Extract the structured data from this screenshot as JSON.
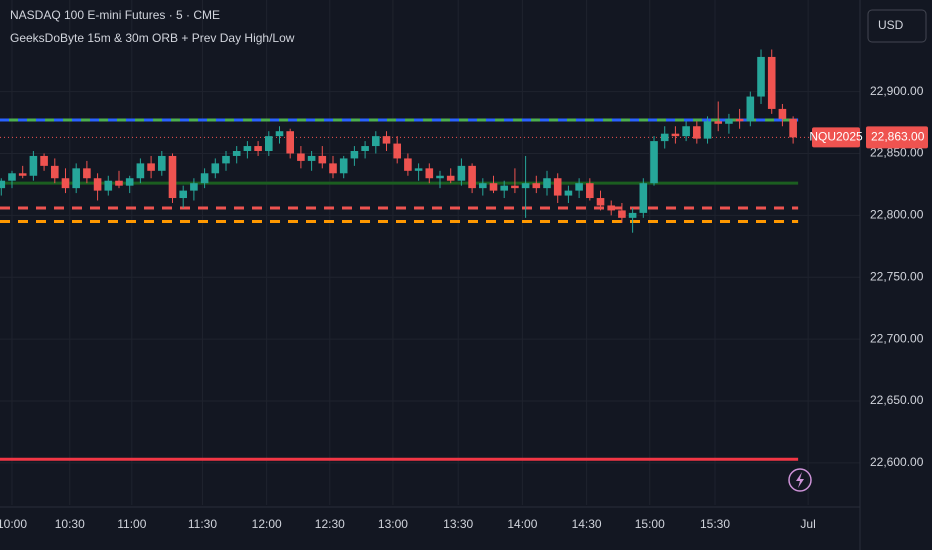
{
  "chart_data": {
    "type": "candlestick",
    "title": "NASDAQ 100 E-mini Futures · 5 · CME",
    "subtitle": "GeeksDoByte 15m & 30m ORB + Prev Day High/Low",
    "currency": "USD",
    "symbol": "NQU2025",
    "last_price": {
      "value": 22863,
      "label": "22,863.00"
    },
    "up_color": "#26a69a",
    "down_color": "#ef5350",
    "grid": true,
    "xlim": [
      -0.12,
      80.25
    ],
    "ylim": [
      22566,
      22974
    ],
    "xticks": [
      {
        "value": 1,
        "label": "10:00"
      },
      {
        "value": 6.4,
        "label": "10:30"
      },
      {
        "value": 12.2,
        "label": "11:00"
      },
      {
        "value": 18.8,
        "label": "11:30"
      },
      {
        "value": 24.8,
        "label": "12:00"
      },
      {
        "value": 30.7,
        "label": "12:30"
      },
      {
        "value": 36.6,
        "label": "13:00"
      },
      {
        "value": 42.7,
        "label": "13:30"
      },
      {
        "value": 48.7,
        "label": "14:00"
      },
      {
        "value": 54.7,
        "label": "14:30"
      },
      {
        "value": 60.6,
        "label": "15:00"
      },
      {
        "value": 66.7,
        "label": "15:30"
      },
      {
        "value": 75.4,
        "label": "Jul"
      }
    ],
    "yticks": [
      {
        "value": 22600,
        "label": "22,600.00"
      },
      {
        "value": 22650,
        "label": "22,650.00"
      },
      {
        "value": 22700,
        "label": "22,700.00"
      },
      {
        "value": 22750,
        "label": "22,750.00"
      },
      {
        "value": 22800,
        "label": "22,800.00"
      },
      {
        "value": 22850,
        "label": "22,850.00"
      },
      {
        "value": 22900,
        "label": "22,900.00"
      }
    ],
    "levels": [
      {
        "value": 22877,
        "color": "#2962ff",
        "color2": "#4caf50",
        "style": "dashed"
      },
      {
        "value": 22826,
        "color": "#1b5e20",
        "style": "solid"
      },
      {
        "value": 22806,
        "color": "#ef5350",
        "style": "dashed"
      },
      {
        "value": 22795,
        "color": "#ff9800",
        "style": "dashed"
      },
      {
        "value": 22603,
        "color": "#f23645",
        "style": "solid"
      }
    ],
    "open": [
      22822,
      22828,
      22834,
      22832,
      22848,
      22840,
      22830,
      22822,
      22838,
      22830,
      22820,
      22828,
      22824,
      22830,
      22842,
      22836,
      22848,
      22814,
      22820,
      22826,
      22834,
      22842,
      22848,
      22852,
      22856,
      22852,
      22864,
      22868,
      22850,
      22844,
      22848,
      22842,
      22834,
      22846,
      22852,
      22856,
      22864,
      22858,
      22846,
      22836,
      22838,
      22830,
      22832,
      22828,
      22840,
      22822,
      22826,
      22820,
      22824,
      22822,
      22826,
      22822,
      22830,
      22816,
      22820,
      22826,
      22814,
      22808,
      22804,
      22798,
      22802,
      22826,
      22860,
      22866,
      22864,
      22872,
      22862,
      22876,
      22874,
      22878,
      22876,
      22896,
      22928,
      22886,
      22878
    ],
    "high": [
      22830,
      22836,
      22840,
      22852,
      22850,
      22846,
      22838,
      22842,
      22844,
      22834,
      22832,
      22836,
      22832,
      22846,
      22848,
      22852,
      22850,
      22824,
      22830,
      22838,
      22846,
      22852,
      22856,
      22860,
      22860,
      22868,
      22872,
      22870,
      22856,
      22852,
      22856,
      22848,
      22848,
      22856,
      22860,
      22868,
      22868,
      22864,
      22850,
      22842,
      22842,
      22836,
      22838,
      22846,
      22842,
      22830,
      22832,
      22828,
      22838,
      22848,
      22832,
      22836,
      22834,
      22824,
      22830,
      22830,
      22820,
      22812,
      22810,
      22806,
      22830,
      22864,
      22872,
      22872,
      22876,
      22876,
      22880,
      22892,
      22882,
      22886,
      22900,
      22934,
      22934,
      22890,
      22880
    ],
    "low": [
      22816,
      22822,
      22830,
      22828,
      22836,
      22826,
      22818,
      22818,
      22826,
      22812,
      22816,
      22822,
      22818,
      22826,
      22830,
      22832,
      22810,
      22806,
      22812,
      22822,
      22830,
      22836,
      22842,
      22846,
      22848,
      22848,
      22858,
      22846,
      22838,
      22836,
      22838,
      22830,
      22830,
      22840,
      22846,
      22850,
      22852,
      22842,
      22832,
      22828,
      22826,
      22822,
      22826,
      22824,
      22818,
      22816,
      22818,
      22814,
      22818,
      22798,
      22818,
      22816,
      22810,
      22810,
      22814,
      22812,
      22804,
      22800,
      22794,
      22786,
      22798,
      22824,
      22854,
      22858,
      22860,
      22858,
      22858,
      22868,
      22866,
      22870,
      22872,
      22890,
      22882,
      22872,
      22858
    ],
    "close": [
      22828,
      22834,
      22832,
      22848,
      22840,
      22830,
      22822,
      22838,
      22830,
      22820,
      22828,
      22824,
      22830,
      22842,
      22836,
      22848,
      22814,
      22820,
      22826,
      22834,
      22842,
      22848,
      22852,
      22856,
      22852,
      22864,
      22868,
      22850,
      22844,
      22848,
      22842,
      22834,
      22846,
      22852,
      22856,
      22864,
      22858,
      22846,
      22836,
      22838,
      22830,
      22832,
      22828,
      22840,
      22822,
      22826,
      22820,
      22824,
      22822,
      22826,
      22822,
      22830,
      22816,
      22820,
      22826,
      22814,
      22808,
      22804,
      22798,
      22802,
      22826,
      22860,
      22866,
      22864,
      22872,
      22862,
      22876,
      22874,
      22878,
      22876,
      22896,
      22928,
      22886,
      22878,
      22863
    ]
  }
}
